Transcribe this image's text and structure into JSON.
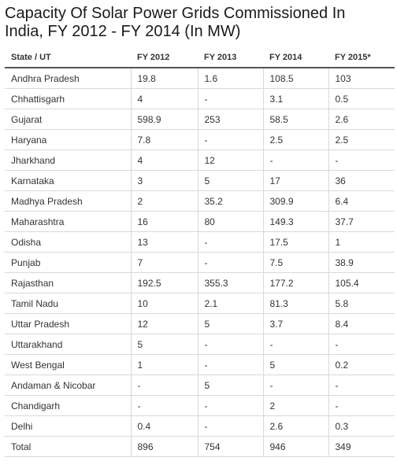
{
  "title": "Capacity Of Solar Power Grids Commissioned In India, FY 2012 - FY 2014 (In MW)",
  "chart_data": {
    "type": "table",
    "columns": [
      "State / UT",
      "FY 2012",
      "FY 2013",
      "FY 2014",
      "FY 2015*"
    ],
    "rows": [
      [
        "Andhra Pradesh",
        "19.8",
        "1.6",
        "108.5",
        "103"
      ],
      [
        "Chhattisgarh",
        "4",
        "-",
        "3.1",
        "0.5"
      ],
      [
        "Gujarat",
        "598.9",
        "253",
        "58.5",
        "2.6"
      ],
      [
        "Haryana",
        "7.8",
        "-",
        "2.5",
        "2.5"
      ],
      [
        "Jharkhand",
        "4",
        "12",
        "-",
        "-"
      ],
      [
        "Karnataka",
        "3",
        "5",
        "17",
        "36"
      ],
      [
        "Madhya Pradesh",
        "2",
        "35.2",
        "309.9",
        "6.4"
      ],
      [
        "Maharashtra",
        "16",
        "80",
        "149.3",
        "37.7"
      ],
      [
        "Odisha",
        "13",
        "-",
        "17.5",
        "1"
      ],
      [
        "Punjab",
        "7",
        "-",
        "7.5",
        "38.9"
      ],
      [
        "Rajasthan",
        "192.5",
        "355.3",
        "177.2",
        "105.4"
      ],
      [
        "Tamil Nadu",
        "10",
        "2.1",
        "81.3",
        "5.8"
      ],
      [
        "Uttar Pradesh",
        "12",
        "5",
        "3.7",
        "8.4"
      ],
      [
        "Uttarakhand",
        "5",
        "-",
        "-",
        "-"
      ],
      [
        "West Bengal",
        "1",
        "-",
        "5",
        "0.2"
      ],
      [
        "Andaman & Nicobar",
        "-",
        "5",
        "-",
        "-"
      ],
      [
        "Chandigarh",
        "-",
        "-",
        "2",
        "-"
      ],
      [
        "Delhi",
        "0.4",
        "-",
        "2.6",
        "0.3"
      ],
      [
        "Total",
        "896",
        "754",
        "946",
        "349"
      ]
    ]
  }
}
